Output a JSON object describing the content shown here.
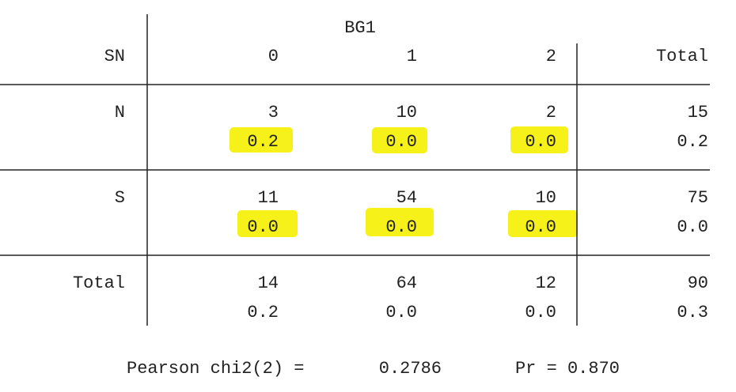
{
  "table": {
    "title": "BG1",
    "row_header": "SN",
    "columns": [
      "0",
      "1",
      "2",
      "Total"
    ],
    "rows": [
      {
        "label": "N",
        "counts": [
          "3",
          "10",
          "2",
          "15"
        ],
        "chi2": [
          "0.2",
          "0.0",
          "0.0",
          "0.2"
        ]
      },
      {
        "label": "S",
        "counts": [
          "11",
          "54",
          "10",
          "75"
        ],
        "chi2": [
          "0.0",
          "0.0",
          "0.0",
          "0.0"
        ]
      },
      {
        "label": "Total",
        "counts": [
          "14",
          "64",
          "12",
          "90"
        ],
        "chi2": [
          "0.2",
          "0.0",
          "0.0",
          "0.3"
        ]
      }
    ]
  },
  "footer": {
    "statistic": "Pearson chi2(2) =",
    "value": "0.2786",
    "p": "Pr = 0.870"
  }
}
